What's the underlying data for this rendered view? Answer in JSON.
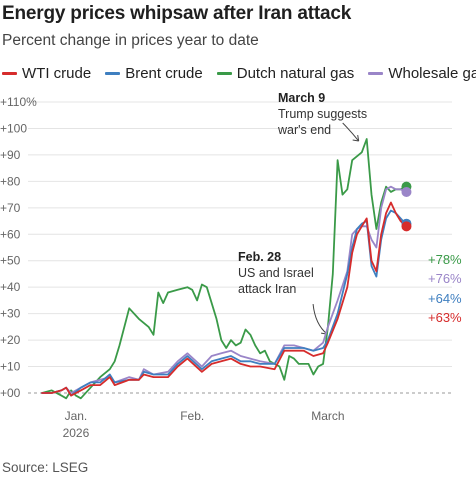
{
  "chart_data": {
    "type": "line",
    "title": "Energy prices whipsaw after Iran attack",
    "subtitle": "Percent change in prices year to date",
    "source": "Source: LSEG",
    "ylim": [
      0,
      110
    ],
    "y_ticks": [
      {
        "value": 0,
        "label": "+00"
      },
      {
        "value": 10,
        "label": "+10"
      },
      {
        "value": 20,
        "label": "+20"
      },
      {
        "value": 30,
        "label": "+30"
      },
      {
        "value": 40,
        "label": "+40"
      },
      {
        "value": 50,
        "label": "+50"
      },
      {
        "value": 60,
        "label": "+60"
      },
      {
        "value": 70,
        "label": "+70"
      },
      {
        "value": 80,
        "label": "+80"
      },
      {
        "value": 90,
        "label": "+90"
      },
      {
        "value": 100,
        "label": "+100"
      },
      {
        "value": 110,
        "label": "+110%"
      }
    ],
    "x_ticks": [
      {
        "date": "2026-01-08",
        "label": "Jan.",
        "sublabel": "2026"
      },
      {
        "date": "2026-02-01",
        "label": "Feb.",
        "sublabel": ""
      },
      {
        "date": "2026-03-01",
        "label": "March",
        "sublabel": ""
      }
    ],
    "xlim": [
      "2026-01-01",
      "2026-03-20"
    ],
    "grid": "horizontal",
    "legend_position": "top",
    "series": [
      {
        "name": "WTI crude",
        "color": "#d62c2c",
        "end_label": "+63%",
        "points": [
          [
            "2026-01-01",
            0
          ],
          [
            "2026-01-03",
            0
          ],
          [
            "2026-01-05",
            1
          ],
          [
            "2026-01-06",
            2
          ],
          [
            "2026-01-07",
            -1
          ],
          [
            "2026-01-09",
            1
          ],
          [
            "2026-01-11",
            3
          ],
          [
            "2026-01-13",
            3
          ],
          [
            "2026-01-15",
            6
          ],
          [
            "2026-01-16",
            3
          ],
          [
            "2026-01-19",
            5
          ],
          [
            "2026-01-21",
            5
          ],
          [
            "2026-01-22",
            7
          ],
          [
            "2026-01-24",
            6
          ],
          [
            "2026-01-27",
            6
          ],
          [
            "2026-01-29",
            10
          ],
          [
            "2026-01-31",
            13
          ],
          [
            "2026-02-03",
            8
          ],
          [
            "2026-02-05",
            11
          ],
          [
            "2026-02-07",
            12
          ],
          [
            "2026-02-09",
            13
          ],
          [
            "2026-02-11",
            11
          ],
          [
            "2026-02-13",
            10
          ],
          [
            "2026-02-15",
            10
          ],
          [
            "2026-02-18",
            9
          ],
          [
            "2026-02-20",
            16
          ],
          [
            "2026-02-22",
            16
          ],
          [
            "2026-02-24",
            16
          ],
          [
            "2026-02-26",
            14
          ],
          [
            "2026-02-28",
            15
          ],
          [
            "2026-03-01",
            19
          ],
          [
            "2026-03-03",
            28
          ],
          [
            "2026-03-05",
            40
          ],
          [
            "2026-03-06",
            53
          ],
          [
            "2026-03-07",
            60
          ],
          [
            "2026-03-08",
            63
          ],
          [
            "2026-03-09",
            66
          ],
          [
            "2026-03-10",
            50
          ],
          [
            "2026-03-11",
            46
          ],
          [
            "2026-03-12",
            60
          ],
          [
            "2026-03-13",
            68
          ],
          [
            "2026-03-14",
            72
          ],
          [
            "2026-03-15",
            68
          ],
          [
            "2026-03-16",
            65
          ],
          [
            "2026-03-17",
            63
          ]
        ]
      },
      {
        "name": "Brent crude",
        "color": "#3f7fc0",
        "end_label": "+64%",
        "points": [
          [
            "2026-01-01",
            0
          ],
          [
            "2026-01-03",
            0
          ],
          [
            "2026-01-05",
            1
          ],
          [
            "2026-01-06",
            2
          ],
          [
            "2026-01-07",
            -1
          ],
          [
            "2026-01-09",
            2
          ],
          [
            "2026-01-11",
            4
          ],
          [
            "2026-01-13",
            4
          ],
          [
            "2026-01-15",
            7
          ],
          [
            "2026-01-16",
            4
          ],
          [
            "2026-01-19",
            5
          ],
          [
            "2026-01-21",
            5
          ],
          [
            "2026-01-22",
            8
          ],
          [
            "2026-01-24",
            7
          ],
          [
            "2026-01-27",
            7
          ],
          [
            "2026-01-29",
            11
          ],
          [
            "2026-01-31",
            14
          ],
          [
            "2026-02-03",
            9
          ],
          [
            "2026-02-05",
            12
          ],
          [
            "2026-02-07",
            13
          ],
          [
            "2026-02-09",
            14
          ],
          [
            "2026-02-11",
            12
          ],
          [
            "2026-02-13",
            12
          ],
          [
            "2026-02-15",
            11
          ],
          [
            "2026-02-18",
            11
          ],
          [
            "2026-02-20",
            17
          ],
          [
            "2026-02-22",
            17
          ],
          [
            "2026-02-24",
            17
          ],
          [
            "2026-02-26",
            16
          ],
          [
            "2026-02-28",
            17
          ],
          [
            "2026-03-01",
            20
          ],
          [
            "2026-03-03",
            30
          ],
          [
            "2026-03-05",
            45
          ],
          [
            "2026-03-06",
            55
          ],
          [
            "2026-03-07",
            62
          ],
          [
            "2026-03-08",
            64
          ],
          [
            "2026-03-09",
            65
          ],
          [
            "2026-03-10",
            48
          ],
          [
            "2026-03-11",
            44
          ],
          [
            "2026-03-12",
            58
          ],
          [
            "2026-03-13",
            66
          ],
          [
            "2026-03-14",
            69
          ],
          [
            "2026-03-15",
            68
          ],
          [
            "2026-03-16",
            66
          ],
          [
            "2026-03-17",
            64
          ]
        ]
      },
      {
        "name": "Dutch natural gas",
        "color": "#3a9a48",
        "end_label": "+78%",
        "points": [
          [
            "2026-01-01",
            0
          ],
          [
            "2026-01-03",
            1
          ],
          [
            "2026-01-05",
            -1
          ],
          [
            "2026-01-06",
            -2
          ],
          [
            "2026-01-07",
            1
          ],
          [
            "2026-01-08",
            -1
          ],
          [
            "2026-01-09",
            -2
          ],
          [
            "2026-01-11",
            2
          ],
          [
            "2026-01-13",
            6
          ],
          [
            "2026-01-15",
            9
          ],
          [
            "2026-01-16",
            12
          ],
          [
            "2026-01-17",
            18
          ],
          [
            "2026-01-19",
            32
          ],
          [
            "2026-01-21",
            28
          ],
          [
            "2026-01-23",
            25
          ],
          [
            "2026-01-24",
            22
          ],
          [
            "2026-01-25",
            38
          ],
          [
            "2026-01-26",
            34
          ],
          [
            "2026-01-27",
            38
          ],
          [
            "2026-01-29",
            39
          ],
          [
            "2026-01-31",
            40
          ],
          [
            "2026-02-01",
            39
          ],
          [
            "2026-02-02",
            35
          ],
          [
            "2026-02-03",
            41
          ],
          [
            "2026-02-04",
            40
          ],
          [
            "2026-02-06",
            28
          ],
          [
            "2026-02-07",
            20
          ],
          [
            "2026-02-08",
            17
          ],
          [
            "2026-02-09",
            20
          ],
          [
            "2026-02-10",
            18
          ],
          [
            "2026-02-11",
            19
          ],
          [
            "2026-02-12",
            24
          ],
          [
            "2026-02-13",
            22
          ],
          [
            "2026-02-14",
            18
          ],
          [
            "2026-02-15",
            15
          ],
          [
            "2026-02-16",
            16
          ],
          [
            "2026-02-17",
            12
          ],
          [
            "2026-02-19",
            10
          ],
          [
            "2026-02-20",
            5
          ],
          [
            "2026-02-21",
            14
          ],
          [
            "2026-02-22",
            13
          ],
          [
            "2026-02-23",
            11
          ],
          [
            "2026-02-25",
            11
          ],
          [
            "2026-02-26",
            7
          ],
          [
            "2026-02-27",
            10
          ],
          [
            "2026-02-28",
            11
          ],
          [
            "2026-03-01",
            25
          ],
          [
            "2026-03-02",
            45
          ],
          [
            "2026-03-03",
            88
          ],
          [
            "2026-03-04",
            75
          ],
          [
            "2026-03-05",
            77
          ],
          [
            "2026-03-06",
            88
          ],
          [
            "2026-03-08",
            91
          ],
          [
            "2026-03-09",
            96
          ],
          [
            "2026-03-10",
            75
          ],
          [
            "2026-03-11",
            62
          ],
          [
            "2026-03-12",
            72
          ],
          [
            "2026-03-13",
            78
          ],
          [
            "2026-03-14",
            76
          ],
          [
            "2026-03-15",
            77
          ],
          [
            "2026-03-16",
            77
          ],
          [
            "2026-03-17",
            78
          ]
        ]
      },
      {
        "name": "Wholesale gas",
        "color": "#9a85c8",
        "end_label": "+76%",
        "points": [
          [
            "2026-01-01",
            0
          ],
          [
            "2026-01-03",
            0
          ],
          [
            "2026-01-05",
            1
          ],
          [
            "2026-01-06",
            2
          ],
          [
            "2026-01-07",
            0
          ],
          [
            "2026-01-09",
            2
          ],
          [
            "2026-01-11",
            4
          ],
          [
            "2026-01-13",
            5
          ],
          [
            "2026-01-15",
            6
          ],
          [
            "2026-01-16",
            4
          ],
          [
            "2026-01-19",
            6
          ],
          [
            "2026-01-21",
            5
          ],
          [
            "2026-01-22",
            9
          ],
          [
            "2026-01-24",
            7
          ],
          [
            "2026-01-27",
            8
          ],
          [
            "2026-01-29",
            12
          ],
          [
            "2026-01-31",
            15
          ],
          [
            "2026-02-03",
            10
          ],
          [
            "2026-02-05",
            14
          ],
          [
            "2026-02-07",
            15
          ],
          [
            "2026-02-09",
            16
          ],
          [
            "2026-02-11",
            14
          ],
          [
            "2026-02-13",
            13
          ],
          [
            "2026-02-15",
            12
          ],
          [
            "2026-02-18",
            11
          ],
          [
            "2026-02-20",
            18
          ],
          [
            "2026-02-22",
            18
          ],
          [
            "2026-02-24",
            17
          ],
          [
            "2026-02-26",
            16
          ],
          [
            "2026-02-28",
            19
          ],
          [
            "2026-03-01",
            25
          ],
          [
            "2026-03-03",
            35
          ],
          [
            "2026-03-05",
            46
          ],
          [
            "2026-03-06",
            60
          ],
          [
            "2026-03-07",
            62
          ],
          [
            "2026-03-08",
            63
          ],
          [
            "2026-03-09",
            63
          ],
          [
            "2026-03-10",
            58
          ],
          [
            "2026-03-11",
            55
          ],
          [
            "2026-03-12",
            70
          ],
          [
            "2026-03-13",
            77
          ],
          [
            "2026-03-14",
            78
          ],
          [
            "2026-03-15",
            77
          ],
          [
            "2026-03-16",
            77
          ],
          [
            "2026-03-17",
            76
          ]
        ]
      }
    ],
    "annotations": [
      {
        "id": "march9",
        "bold": "March 9",
        "lines": [
          "Trump suggests",
          "war's end"
        ],
        "target_date": "2026-03-09",
        "target_value": 96
      },
      {
        "id": "feb28",
        "bold": "Feb. 28",
        "lines": [
          "US and Israel",
          "attack Iran"
        ],
        "target_date": "2026-02-28",
        "target_value": 20
      }
    ]
  }
}
